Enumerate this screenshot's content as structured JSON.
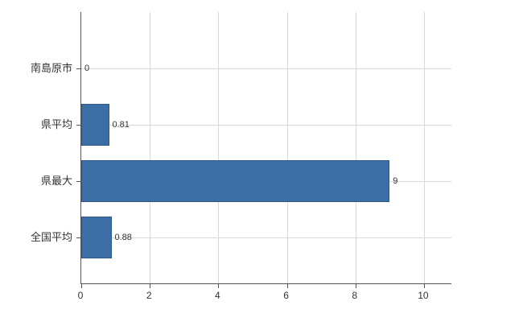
{
  "chart_data": {
    "type": "bar",
    "orientation": "horizontal",
    "title": "",
    "xlabel": "",
    "ylabel": "",
    "categories": [
      "南島原市",
      "県平均",
      "県最大",
      "全国平均"
    ],
    "values": [
      0,
      0.81,
      9,
      0.88
    ],
    "value_labels": [
      "0",
      "0.81",
      "9",
      "0.88"
    ],
    "xlim": [
      0,
      10.8
    ],
    "xticks": [
      0,
      2,
      4,
      6,
      8,
      10
    ],
    "grid": true,
    "legend": "none",
    "bar_color": "#3a6ea5",
    "bar_border_color": "#2e5a8c",
    "grid_color": "#d9d9d9",
    "axis_color": "#545454",
    "text_color": "#333333"
  }
}
